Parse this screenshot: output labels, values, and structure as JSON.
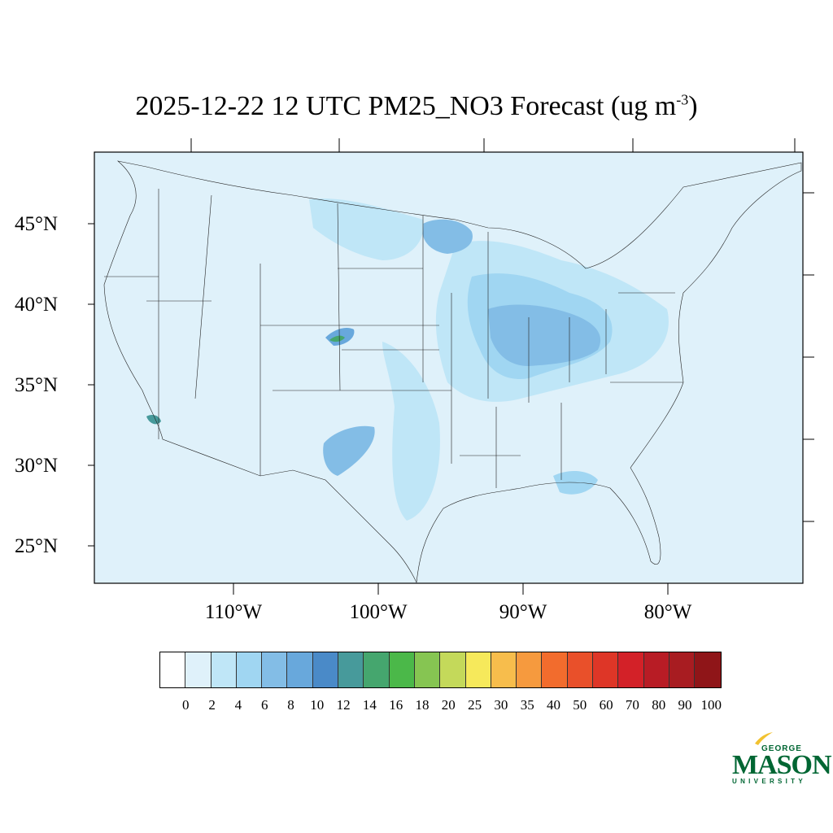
{
  "title": {
    "main": "2025-12-22 12 UTC PM25_NO3 Forecast (ug m",
    "exponent": "-3",
    "close": ")"
  },
  "map": {
    "background_color": "#dff1fa",
    "lat_labels": [
      "45°N",
      "40°N",
      "35°N",
      "30°N",
      "25°N"
    ],
    "lon_labels": [
      "110°W",
      "100°W",
      "90°W",
      "80°W"
    ]
  },
  "colorbar": {
    "colors": [
      "#ffffff",
      "#dff1fa",
      "#bfe6f7",
      "#a0d6f2",
      "#83bde6",
      "#68a8dc",
      "#4a8ac8",
      "#479a9b",
      "#45a66e",
      "#4bb849",
      "#86c552",
      "#c4d95a",
      "#f6e95b",
      "#f7bd4c",
      "#f69a3e",
      "#f26c2d",
      "#e9502a",
      "#de3627",
      "#d32128",
      "#b81c25",
      "#a81c21",
      "#8f1518"
    ],
    "labels": [
      "0",
      "2",
      "4",
      "6",
      "8",
      "10",
      "12",
      "14",
      "16",
      "18",
      "20",
      "25",
      "30",
      "35",
      "40",
      "50",
      "60",
      "70",
      "80",
      "90",
      "100"
    ]
  },
  "logo": {
    "line1": "GEORGE",
    "line2": "MASON",
    "line3": "UNIVERSITY",
    "color": "#006633",
    "accent": "#f2c230"
  }
}
